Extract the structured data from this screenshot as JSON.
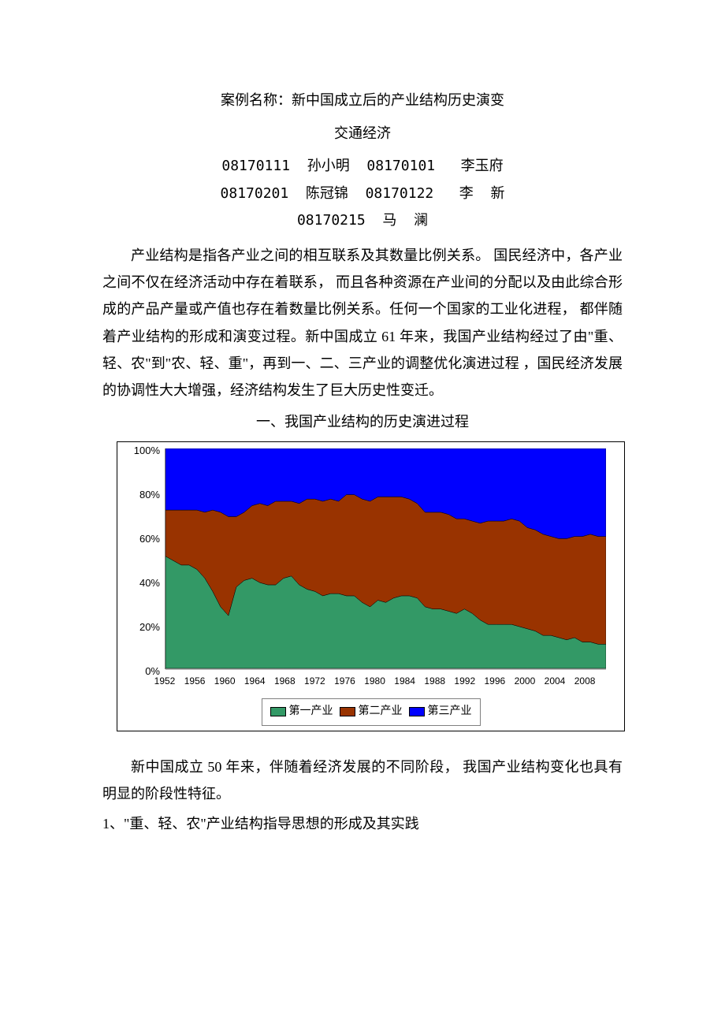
{
  "title": "案例名称：新中国成立后的产业结构历史演变",
  "subtitle": "交通经济",
  "authors": {
    "line1": "08170111  孙小明  08170101   李玉府",
    "line2": "08170201  陈冠锦  08170122   李  新",
    "line3": "08170215  马  澜"
  },
  "paragraph1": "产业结构是指各产业之间的相互联系及其数量比例关系。   国民经济中，各产业之间不仅在经济活动中存在着联系，   而且各种资源在产业间的分配以及由此综合形成的产品产量或产值也存在着数量比例关系。任何一个国家的工业化进程，   都伴随着产业结构的形成和演变过程。新中国成立   61 年来，我国产业结构经过了由\"重、轻、农\"到\"农、轻、重\"，再到一、二、三产业的调整优化演进过程   ，国民经济发展的协调性大大增强，经济结构发生了巨大历史性变迁。",
  "section_heading": "一、我国产业结构的历史演进过程",
  "chart": {
    "type": "stacked-area",
    "background_color": "#ffffff",
    "grid_color": "#c0c0c0",
    "axis_color": "#808080",
    "text_color": "#000000",
    "label_fontsize": 13,
    "xtick_fontsize": 12,
    "legend_fontsize": 14,
    "ylim": [
      0,
      100
    ],
    "ytick_step": 20,
    "y_ticks": [
      "100%",
      "80%",
      "60%",
      "40%",
      "20%",
      "0%"
    ],
    "x_labels": [
      "1952",
      "1956",
      "1960",
      "1964",
      "1968",
      "1972",
      "1976",
      "1980",
      "1984",
      "1988",
      "1992",
      "1996",
      "2000",
      "2004",
      "2008"
    ],
    "years": [
      1952,
      1953,
      1954,
      1955,
      1956,
      1957,
      1958,
      1959,
      1960,
      1961,
      1962,
      1963,
      1964,
      1965,
      1966,
      1967,
      1968,
      1969,
      1970,
      1971,
      1972,
      1973,
      1974,
      1975,
      1976,
      1977,
      1978,
      1979,
      1980,
      1981,
      1982,
      1983,
      1984,
      1985,
      1986,
      1987,
      1988,
      1989,
      1990,
      1991,
      1992,
      1993,
      1994,
      1995,
      1996,
      1997,
      1998,
      1999,
      2000,
      2001,
      2002,
      2003,
      2004,
      2005,
      2006,
      2007,
      2008
    ],
    "series": [
      {
        "name": "第一产业",
        "color": "#339966",
        "values": [
          51,
          49,
          47,
          47,
          45,
          41,
          35,
          28,
          24,
          37,
          40,
          41,
          39,
          38,
          38,
          41,
          42,
          38,
          36,
          35,
          33,
          34,
          34,
          33,
          33,
          30,
          28,
          31,
          30,
          32,
          33,
          33,
          32,
          28,
          27,
          27,
          26,
          25,
          27,
          25,
          22,
          20,
          20,
          20,
          20,
          19,
          18,
          17,
          15,
          15,
          14,
          13,
          14,
          12,
          12,
          11,
          11
        ]
      },
      {
        "name": "第二产业",
        "color": "#993300",
        "values": [
          21,
          23,
          25,
          25,
          27,
          30,
          37,
          43,
          45,
          32,
          31,
          33,
          36,
          36,
          38,
          35,
          34,
          37,
          41,
          42,
          43,
          43,
          42,
          46,
          46,
          47,
          48,
          47,
          48,
          46,
          45,
          44,
          43,
          43,
          44,
          44,
          44,
          43,
          41,
          42,
          44,
          47,
          47,
          47,
          48,
          48,
          46,
          46,
          46,
          45,
          45,
          46,
          46,
          48,
          49,
          49,
          49
        ]
      },
      {
        "name": "第三产业",
        "color": "#0000ff",
        "values": [
          28,
          28,
          28,
          28,
          28,
          29,
          28,
          29,
          31,
          31,
          29,
          26,
          25,
          26,
          24,
          24,
          24,
          25,
          23,
          23,
          24,
          23,
          24,
          21,
          21,
          23,
          24,
          22,
          22,
          22,
          22,
          23,
          25,
          29,
          29,
          29,
          30,
          32,
          32,
          33,
          34,
          33,
          33,
          33,
          32,
          33,
          36,
          37,
          39,
          40,
          41,
          41,
          40,
          40,
          39,
          40,
          40
        ]
      }
    ],
    "legend": [
      {
        "label": "第一产业",
        "color": "#339966"
      },
      {
        "label": "第二产业",
        "color": "#993300"
      },
      {
        "label": "第三产业",
        "color": "#0000ff"
      }
    ]
  },
  "paragraph2": "新中国成立  50 年来，伴随着经济发展的不同阶段，   我国产业结构变化也具有明显的阶段性特征。",
  "subheading": "1、\"重、轻、农\"产业结构指导思想的形成及其实践"
}
